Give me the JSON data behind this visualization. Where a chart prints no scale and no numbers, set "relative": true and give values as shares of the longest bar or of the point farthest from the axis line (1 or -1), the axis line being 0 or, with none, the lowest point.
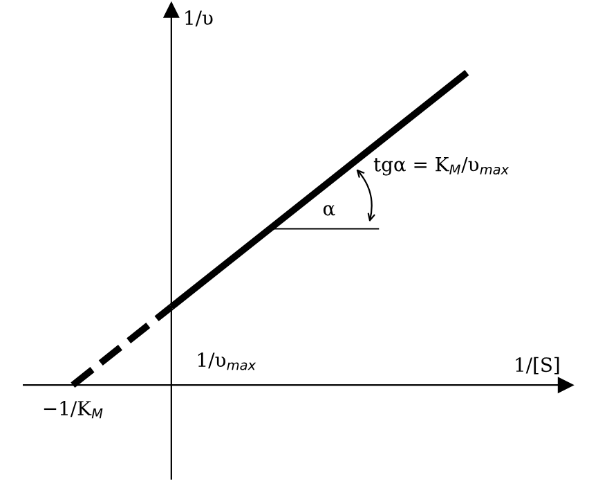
{
  "chart_data": {
    "type": "line",
    "relative": true,
    "marker": "none",
    "xlabel": "1/[S]",
    "ylabel": "1/υ",
    "categories": [
      null,
      null,
      null,
      null,
      null
    ],
    "series": [
      {
        "values": [
          0,
          0.25,
          null,
          null,
          null
        ],
        "color": "#000000",
        "line_style": "dashed"
      },
      {
        "values": [
          null,
          0.25,
          0.5,
          0.75,
          1
        ],
        "color": "#000000",
        "line_style": "solid"
      }
    ],
    "annotations": [
      "−1/K$_{M}$",
      "1/υ$_{max}$",
      "α",
      "tgα = K$_{M}$/υ$_{max}$"
    ]
  }
}
